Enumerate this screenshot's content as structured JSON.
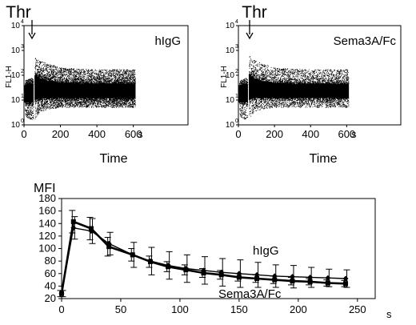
{
  "chart_data": [
    {
      "type": "scatter",
      "panel_label": "hIgG",
      "marker_text": "Thr",
      "marker_x": 55,
      "xlabel": "Time",
      "x_unit": "s",
      "ylabel": "FL1-H",
      "x_ticks": [
        "0",
        "200",
        "400",
        "600"
      ],
      "y_ticks": [
        "0",
        "1",
        "2",
        "3",
        "4"
      ],
      "y_tick_base": "10",
      "xlim": [
        0,
        900
      ],
      "ylim_log10": [
        0,
        4
      ],
      "yscale": "log",
      "grid": false,
      "density_envelope": {
        "x": [
          5,
          50,
          55,
          60,
          80,
          120,
          200,
          300,
          400,
          500,
          600,
          610
        ],
        "y_low": [
          2,
          1.5,
          1.5,
          1.5,
          3,
          4,
          5,
          5,
          5,
          5,
          5,
          5
        ],
        "y_high": [
          60,
          80,
          10,
          500,
          400,
          300,
          200,
          180,
          170,
          170,
          170,
          170
        ],
        "y_core_low": [
          8,
          8,
          8,
          10,
          12,
          12,
          12,
          12,
          12,
          12,
          12,
          12
        ],
        "y_core_high": [
          40,
          40,
          40,
          100,
          80,
          60,
          50,
          45,
          45,
          45,
          45,
          45
        ]
      }
    },
    {
      "type": "scatter",
      "panel_label": "Sema3A/Fc",
      "marker_text": "Thr",
      "marker_x": 55,
      "xlabel": "Time",
      "x_unit": "s",
      "ylabel": "FL1-H",
      "x_ticks": [
        "0",
        "200",
        "400",
        "600"
      ],
      "y_ticks": [
        "0",
        "1",
        "2",
        "3",
        "4"
      ],
      "y_tick_base": "10",
      "xlim": [
        0,
        900
      ],
      "ylim_log10": [
        0,
        4
      ],
      "yscale": "log",
      "grid": false,
      "density_envelope": {
        "x": [
          5,
          50,
          55,
          60,
          80,
          120,
          200,
          300,
          400,
          500,
          600,
          610
        ],
        "y_low": [
          2,
          1.5,
          1.5,
          1.5,
          3,
          4,
          5,
          5,
          5,
          5,
          5,
          5
        ],
        "y_high": [
          60,
          80,
          10,
          600,
          450,
          300,
          200,
          180,
          170,
          170,
          170,
          170
        ],
        "y_core_low": [
          8,
          8,
          8,
          10,
          12,
          12,
          12,
          12,
          12,
          12,
          12,
          12
        ],
        "y_core_high": [
          40,
          40,
          40,
          110,
          80,
          60,
          50,
          45,
          45,
          45,
          45,
          45
        ]
      }
    },
    {
      "type": "line",
      "ylabel": "MFI",
      "xlabel": "",
      "x_unit": "s",
      "x_ticks": [
        0,
        50,
        100,
        150,
        200,
        250
      ],
      "y_ticks": [
        20,
        40,
        60,
        80,
        100,
        120,
        140,
        160,
        180
      ],
      "xlim": [
        0,
        265
      ],
      "ylim": [
        20,
        180
      ],
      "grid": false,
      "series": [
        {
          "name": "hIgG",
          "x": [
            0,
            10,
            25,
            40,
            60,
            75,
            90,
            105,
            120,
            135,
            150,
            165,
            180,
            195,
            210,
            225,
            240
          ],
          "y": [
            28,
            133,
            128,
            108,
            90,
            80,
            73,
            68,
            65,
            62,
            60,
            58,
            56,
            55,
            54,
            53,
            52
          ],
          "err": [
            5,
            18,
            20,
            18,
            20,
            22,
            22,
            22,
            22,
            22,
            22,
            20,
            18,
            18,
            16,
            14,
            14
          ]
        },
        {
          "name": "Sema3A/Fc",
          "x": [
            0,
            10,
            25,
            40,
            60,
            75,
            90,
            105,
            120,
            135,
            150,
            165,
            180,
            195,
            210,
            225,
            240
          ],
          "y": [
            28,
            143,
            132,
            103,
            90,
            79,
            71,
            66,
            61,
            58,
            54,
            52,
            50,
            48,
            47,
            45,
            44
          ],
          "err": [
            5,
            18,
            18,
            15,
            10,
            9,
            8,
            8,
            7,
            7,
            6,
            6,
            6,
            6,
            5,
            5,
            5
          ]
        }
      ]
    }
  ]
}
